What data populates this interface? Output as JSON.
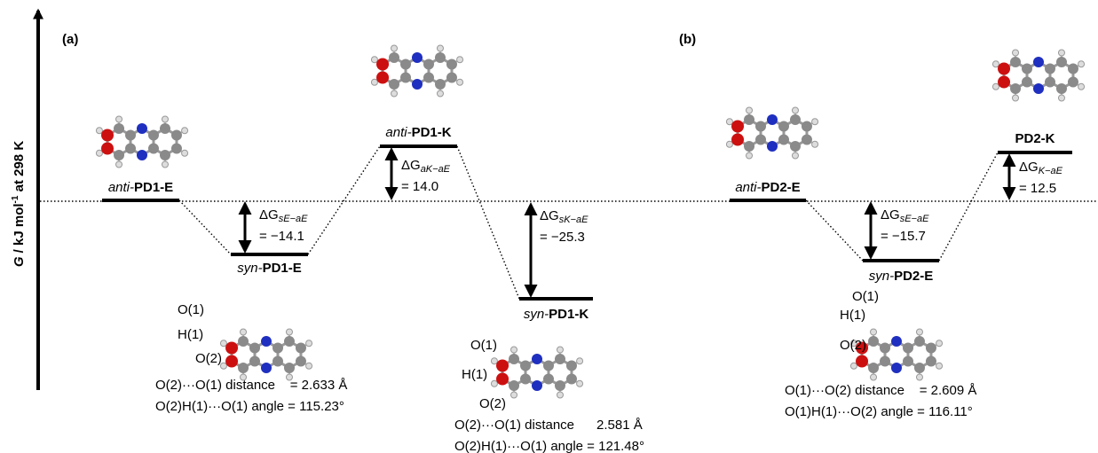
{
  "panels": [
    {
      "label": "(a)"
    },
    {
      "label": "(b)"
    }
  ],
  "y_axis": {
    "symbol": "G",
    "unit": " / kJ mol",
    "sup": "-1",
    "suffix": " at 298 K"
  },
  "levels": [
    {
      "prefix": "anti-",
      "name": "PD1-E"
    },
    {
      "prefix": "syn-",
      "name": "PD1-E"
    },
    {
      "prefix": "anti-",
      "name": "PD1-K"
    },
    {
      "prefix": "syn-",
      "name": "PD1-K"
    },
    {
      "prefix": "anti-",
      "name": "PD2-E"
    },
    {
      "prefix": "syn-",
      "name": "PD2-E"
    },
    {
      "name": "PD2-K"
    }
  ],
  "deltas": [
    {
      "symbol": "ΔG",
      "sub": "sE−aE",
      "value": "= −14.1"
    },
    {
      "symbol": "ΔG",
      "sub": "aK−aE",
      "value": "= 14.0"
    },
    {
      "symbol": "ΔG",
      "sub": "sK−aE",
      "value": "= −25.3"
    },
    {
      "symbol": "ΔG",
      "sub": "sE−aE",
      "value": "= −15.7"
    },
    {
      "symbol": "ΔG",
      "sub": "K−aE",
      "value": "= 12.5"
    }
  ],
  "atom_labels": [
    [
      "O(1)",
      "H(1)",
      "O(2)"
    ],
    [
      "O(1)",
      "H(1)",
      "O(2)"
    ],
    [
      "O(1)",
      "H(1)",
      "O(2)"
    ]
  ],
  "geometry": [
    {
      "distance": "O(2)···O(1) distance    = 2.633 Å",
      "angle": "O(2)H(1)···O(1) angle = 115.23°"
    },
    {
      "distance": "O(2)···O(1) distance      2.581 Å",
      "angle": "O(2)H(1)···O(1) angle = 121.48°"
    },
    {
      "distance": "O(1)···O(2) distance    = 2.609 Å",
      "angle": "O(1)H(1)···O(2) angle = 116.11°"
    }
  ]
}
